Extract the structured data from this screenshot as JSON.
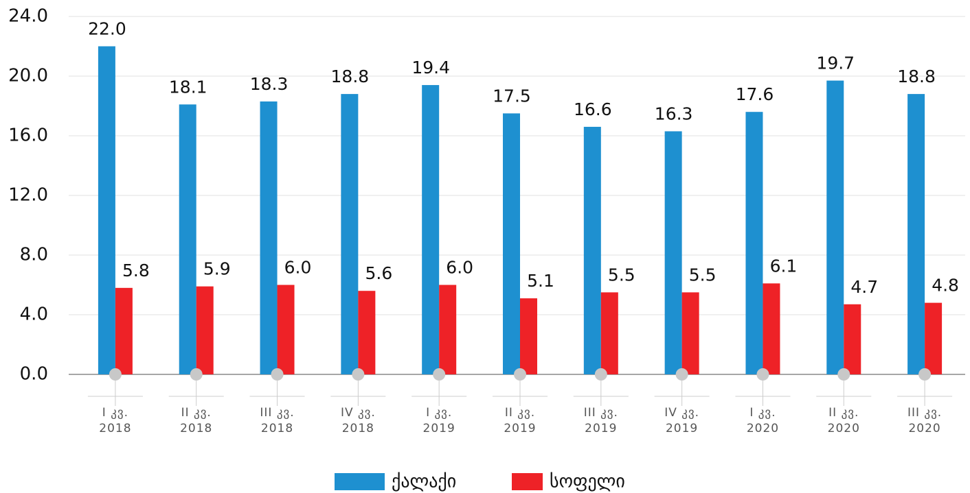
{
  "chart_data": {
    "type": "bar",
    "categories": [
      "I კვ.\n2018",
      "II კვ.\n2018",
      "III კვ.\n2018",
      "IV კვ.\n2018",
      "I კვ.\n2019",
      "II კვ.\n2019",
      "III კვ.\n2019",
      "IV კვ.\n2019",
      "I კვ.\n2020",
      "II კვ.\n2020",
      "III კვ.\n2020"
    ],
    "series": [
      {
        "name": "ქალაქი",
        "color": "#1e90d0",
        "values": [
          22.0,
          18.1,
          18.3,
          18.8,
          19.4,
          17.5,
          16.6,
          16.3,
          17.6,
          19.7,
          18.8
        ],
        "value_labels": [
          "22.0",
          "18.1",
          "18.3",
          "18.8",
          "19.4",
          "17.5",
          "16.6",
          "16.3",
          "17.6",
          "19.7",
          "18.8"
        ]
      },
      {
        "name": "სოფელი",
        "color": "#ee2227",
        "values": [
          5.8,
          5.9,
          6.0,
          5.6,
          6.0,
          5.1,
          5.5,
          5.5,
          6.1,
          4.7,
          4.8
        ],
        "value_labels": [
          "5.8",
          "5.9",
          "6.0",
          "5.6",
          "6.0",
          "5.1",
          "5.5",
          "5.5",
          "6.1",
          "4.7",
          "4.8"
        ]
      }
    ],
    "ylim": [
      0,
      24
    ],
    "yticks": [
      {
        "value": 0,
        "label": "0.0"
      },
      {
        "value": 4,
        "label": "4.0"
      },
      {
        "value": 8,
        "label": "8.0"
      },
      {
        "value": 12,
        "label": "12.0"
      },
      {
        "value": 16,
        "label": "16.0"
      },
      {
        "value": 20,
        "label": "20.0"
      },
      {
        "value": 24,
        "label": "24.0"
      }
    ],
    "grid": true,
    "legend": "bottom"
  }
}
